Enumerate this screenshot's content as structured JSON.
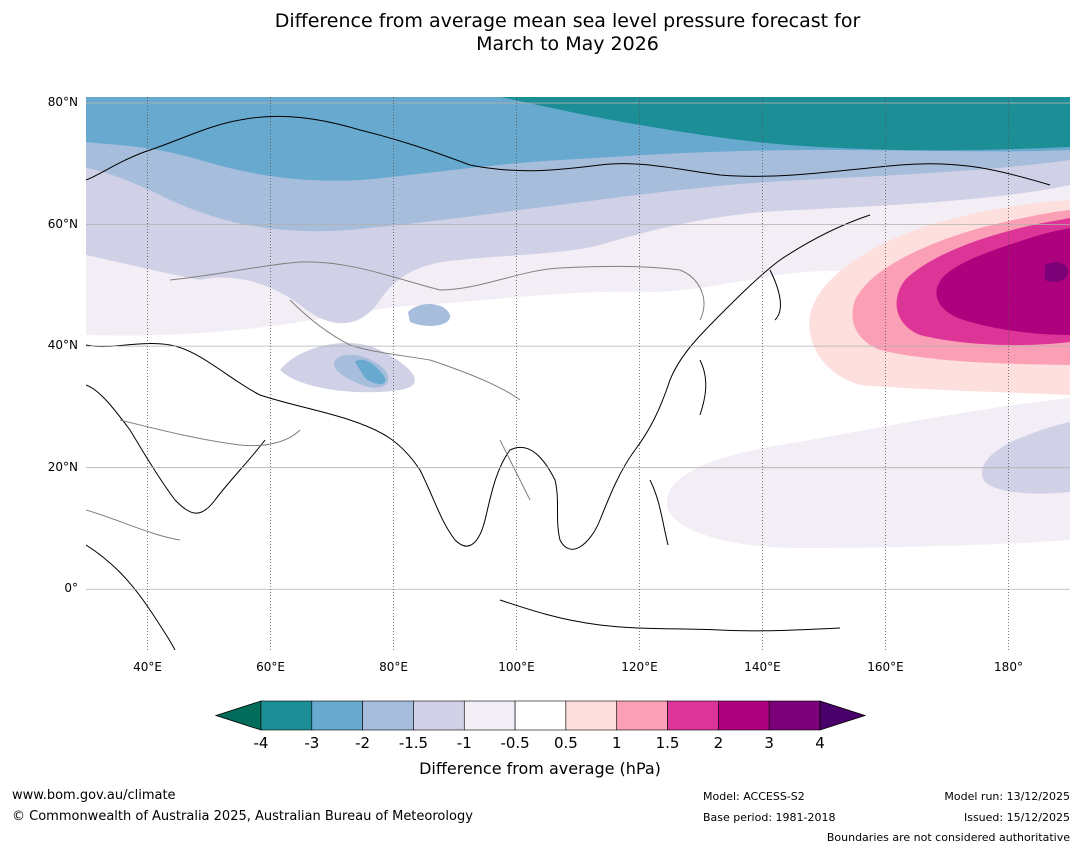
{
  "title": {
    "line1": "Difference from average mean sea level pressure forecast for",
    "line2": "March to May 2026"
  },
  "map": {
    "lat_labels": [
      "80°N",
      "60°N",
      "40°N",
      "20°N",
      "0°"
    ],
    "lat_values": [
      80,
      60,
      40,
      20,
      0
    ],
    "lon_labels": [
      "40°E",
      "60°E",
      "80°E",
      "100°E",
      "120°E",
      "140°E",
      "160°E",
      "180°"
    ],
    "lon_values": [
      40,
      60,
      80,
      100,
      120,
      140,
      160,
      180
    ],
    "lon_range": [
      30,
      190
    ],
    "lat_range": [
      -10,
      81
    ]
  },
  "colorbar": {
    "ticks": [
      "-4",
      "-3",
      "-2",
      "-1.5",
      "-1",
      "-0.5",
      "0.5",
      "1",
      "1.5",
      "2",
      "3",
      "4"
    ],
    "colors": [
      "#1b8e96",
      "#67a9cf",
      "#a6bddb",
      "#d0d1e6",
      "#f3eef6",
      "#ffffff",
      "#fde0dd",
      "#fa9fb5",
      "#dd3497",
      "#ae017e",
      "#7a0177"
    ],
    "under_color": "#016c59",
    "over_color": "#49006a",
    "title": "Difference from average (hPa)"
  },
  "footer": {
    "website": "www.bom.gov.au/climate",
    "copyright": "© Commonwealth of Australia 2025, Australian Bureau of Meteorology",
    "model": "Model: ACCESS-S2",
    "base_period": "Base period: 1981-2018",
    "model_run": "Model run: 13/12/2025",
    "issued": "Issued: 15/12/2025",
    "disclaimer": "Boundaries are not considered authoritative"
  }
}
